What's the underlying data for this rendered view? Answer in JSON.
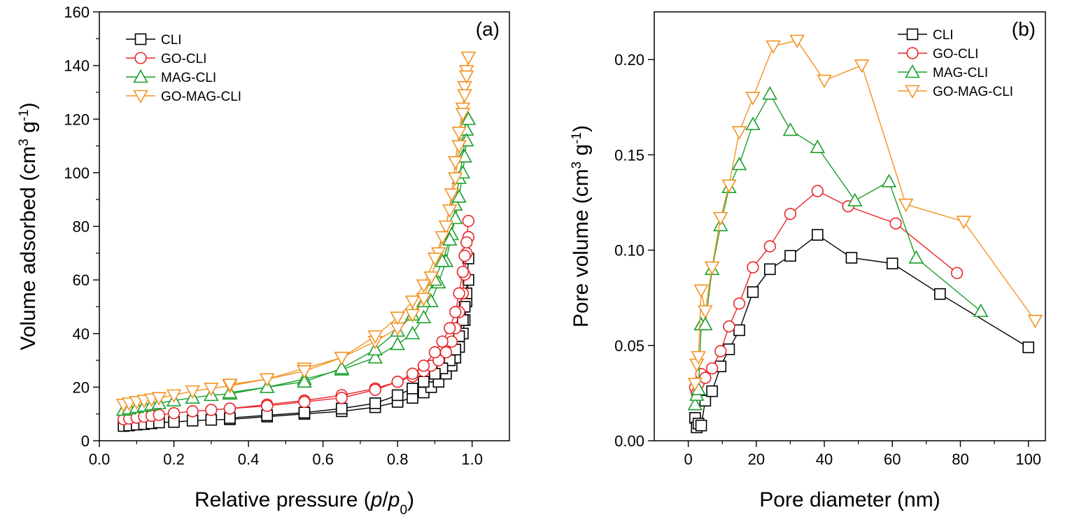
{
  "chart_data": [
    {
      "type": "line",
      "panel_label": "(a)",
      "xlabel": {
        "pre": "Relative pressure (",
        "italic": "p",
        "mid": "/",
        "italic2": "p",
        "sub": "0",
        "post": ")"
      },
      "ylabel": {
        "pre": "Volume adsorbed (cm",
        "sup": "3",
        "mid": " g",
        "sup2": "-1",
        "post": ")"
      },
      "xlim": [
        0.0,
        1.1
      ],
      "ylim": [
        0,
        160
      ],
      "xticks": [
        0.0,
        0.2,
        0.4,
        0.6,
        0.8,
        1.0
      ],
      "xtick_labels": [
        "0.0",
        "0.2",
        "0.4",
        "0.6",
        "0.8",
        "1.0"
      ],
      "yticks": [
        0,
        20,
        40,
        60,
        80,
        100,
        120,
        140,
        160
      ],
      "ytick_labels": [
        "0",
        "20",
        "40",
        "60",
        "80",
        "100",
        "120",
        "140",
        "160"
      ],
      "legend_position": "top-left",
      "series": [
        {
          "name": "CLI",
          "color": "#000000",
          "marker": "square",
          "adsorption": {
            "x": [
              0.065,
              0.08,
              0.1,
              0.12,
              0.14,
              0.16,
              0.2,
              0.25,
              0.3,
              0.35,
              0.45,
              0.55,
              0.65,
              0.74,
              0.8,
              0.84,
              0.87,
              0.89,
              0.91,
              0.93,
              0.945,
              0.955,
              0.965,
              0.975,
              0.98,
              0.985,
              0.99
            ],
            "y": [
              5.5,
              5.7,
              6.0,
              6.2,
              6.5,
              6.8,
              7.0,
              7.5,
              7.8,
              8.0,
              9.0,
              10.0,
              11.0,
              12.5,
              14.5,
              16.0,
              18.0,
              20.0,
              22.0,
              25.0,
              28.0,
              31.0,
              35.0,
              40.0,
              45.0,
              52.0,
              60.0
            ]
          },
          "desorption": {
            "x": [
              0.99,
              0.985,
              0.98,
              0.975,
              0.965,
              0.955,
              0.94,
              0.92,
              0.9,
              0.87,
              0.84,
              0.8,
              0.74,
              0.65,
              0.55,
              0.45,
              0.35
            ],
            "y": [
              68.0,
              55.0,
              50.0,
              45.0,
              39.0,
              34.0,
              30.0,
              27.0,
              25.0,
              22.0,
              19.5,
              17.0,
              14.0,
              12.0,
              10.5,
              9.5,
              8.5
            ]
          }
        },
        {
          "name": "GO-CLI",
          "color": "#e8262a",
          "marker": "circle",
          "adsorption": {
            "x": [
              0.065,
              0.08,
              0.1,
              0.12,
              0.14,
              0.16,
              0.2,
              0.25,
              0.3,
              0.35,
              0.45,
              0.55,
              0.65,
              0.74,
              0.8,
              0.84,
              0.87,
              0.89,
              0.91,
              0.93,
              0.945,
              0.955,
              0.965,
              0.975,
              0.98,
              0.985,
              0.99
            ],
            "y": [
              8.0,
              8.3,
              8.6,
              9.0,
              9.3,
              9.6,
              10.3,
              11.0,
              11.5,
              12.0,
              13.5,
              15.0,
              17.0,
              19.5,
              22.0,
              24.0,
              26.0,
              28.0,
              30.0,
              33.0,
              37.0,
              42.0,
              48.0,
              55.0,
              62.0,
              70.0,
              76.0
            ]
          },
          "desorption": {
            "x": [
              0.99,
              0.985,
              0.98,
              0.975,
              0.965,
              0.955,
              0.94,
              0.92,
              0.9,
              0.87,
              0.84,
              0.8,
              0.74,
              0.65,
              0.55,
              0.45,
              0.35
            ],
            "y": [
              82.0,
              74.0,
              69.0,
              63.0,
              55.0,
              48.0,
              42.0,
              37.0,
              33.0,
              28.0,
              25.0,
              22.0,
              19.0,
              16.0,
              14.5,
              13.0,
              12.0
            ]
          }
        },
        {
          "name": "MAG-CLI",
          "color": "#1a9f2b",
          "marker": "triangle-up",
          "adsorption": {
            "x": [
              0.065,
              0.08,
              0.1,
              0.12,
              0.14,
              0.16,
              0.2,
              0.25,
              0.3,
              0.35,
              0.45,
              0.55,
              0.65,
              0.74,
              0.8,
              0.84,
              0.87,
              0.89,
              0.91,
              0.93,
              0.945,
              0.955,
              0.965,
              0.975,
              0.98,
              0.985,
              0.99
            ],
            "y": [
              11.5,
              12.0,
              12.5,
              13.0,
              13.5,
              14.0,
              15.0,
              16.0,
              17.0,
              17.5,
              20.0,
              23.0,
              26.5,
              31.0,
              36.0,
              40.0,
              46.0,
              52.0,
              59.0,
              67.0,
              77.0,
              88.0,
              98.0,
              106.0,
              112.0,
              116.0,
              120.0
            ]
          },
          "desorption": {
            "x": [
              0.99,
              0.985,
              0.98,
              0.975,
              0.965,
              0.955,
              0.94,
              0.92,
              0.9,
              0.87,
              0.84,
              0.8,
              0.74,
              0.65,
              0.55,
              0.45,
              0.35
            ],
            "y": [
              120.0,
              112.0,
              106.0,
              100.0,
              91.0,
              83.0,
              75.0,
              67.0,
              60.0,
              52.0,
              47.0,
              41.0,
              34.0,
              27.0,
              22.0,
              20.0,
              18.0
            ]
          }
        },
        {
          "name": "GO-MAG-CLI",
          "color": "#f39322",
          "marker": "triangle-down",
          "adsorption": {
            "x": [
              0.065,
              0.08,
              0.1,
              0.12,
              0.14,
              0.16,
              0.2,
              0.25,
              0.3,
              0.35,
              0.45,
              0.55,
              0.65,
              0.74,
              0.8,
              0.84,
              0.87,
              0.89,
              0.91,
              0.93,
              0.945,
              0.955,
              0.965,
              0.975,
              0.98,
              0.985,
              0.99
            ],
            "y": [
              13.5,
              14.0,
              14.5,
              15.0,
              15.5,
              16.0,
              17.0,
              18.5,
              19.5,
              20.5,
              23.0,
              27.0,
              31.0,
              37.0,
              42.0,
              47.0,
              53.0,
              61.0,
              70.0,
              80.0,
              92.0,
              104.0,
              115.0,
              124.0,
              132.0,
              138.0,
              143.0
            ]
          },
          "desorption": {
            "x": [
              0.99,
              0.985,
              0.98,
              0.975,
              0.965,
              0.955,
              0.94,
              0.92,
              0.9,
              0.87,
              0.84,
              0.8,
              0.74,
              0.65,
              0.55,
              0.45,
              0.35
            ],
            "y": [
              143.0,
              136.0,
              129.0,
              122.0,
              110.0,
              98.0,
              86.0,
              76.0,
              68.0,
              58.0,
              52.0,
              46.0,
              39.0,
              31.0,
              26.0,
              23.0,
              21.0
            ]
          }
        }
      ]
    },
    {
      "type": "line",
      "panel_label": "(b)",
      "xlabel": {
        "pre": "Pore diameter (nm)"
      },
      "ylabel": {
        "pre": "Pore volume (cm",
        "sup": "3",
        "mid": " g",
        "sup2": "-1",
        "post": ")"
      },
      "xlim": [
        -10,
        105
      ],
      "ylim": [
        0.0,
        0.225
      ],
      "xticks": [
        0,
        20,
        40,
        60,
        80,
        100
      ],
      "xtick_labels": [
        "0",
        "20",
        "40",
        "60",
        "80",
        "100"
      ],
      "yticks": [
        0.0,
        0.05,
        0.1,
        0.15,
        0.2
      ],
      "ytick_labels": [
        "0.00",
        "0.05",
        "0.10",
        "0.15",
        "0.20"
      ],
      "legend_position": "top-right",
      "series": [
        {
          "name": "CLI",
          "color": "#000000",
          "marker": "square",
          "x": [
            2.0,
            2.5,
            3.0,
            3.8,
            5.0,
            7.0,
            9.5,
            12.0,
            15.0,
            19.0,
            24.0,
            30.0,
            38.0,
            48.0,
            60.0,
            74.0,
            100.0
          ],
          "y": [
            0.012,
            0.007,
            0.009,
            0.008,
            0.021,
            0.026,
            0.039,
            0.048,
            0.058,
            0.078,
            0.09,
            0.097,
            0.108,
            0.096,
            0.093,
            0.077,
            0.049
          ]
        },
        {
          "name": "GO-CLI",
          "color": "#e8262a",
          "marker": "circle",
          "x": [
            2.0,
            2.5,
            3.0,
            3.8,
            5.0,
            7.0,
            9.5,
            12.0,
            15.0,
            19.0,
            24.0,
            30.0,
            38.0,
            47.0,
            61.0,
            79.0
          ],
          "y": [
            0.028,
            0.025,
            0.03,
            0.035,
            0.033,
            0.038,
            0.047,
            0.06,
            0.072,
            0.091,
            0.102,
            0.119,
            0.131,
            0.123,
            0.114,
            0.088
          ]
        },
        {
          "name": "MAG-CLI",
          "color": "#1a9f2b",
          "marker": "triangle-up",
          "x": [
            2.0,
            2.5,
            3.0,
            3.8,
            5.0,
            7.0,
            9.5,
            12.0,
            15.0,
            19.0,
            24.0,
            30.0,
            38.0,
            49.0,
            59.0,
            67.0,
            86.0
          ],
          "y": [
            0.019,
            0.024,
            0.027,
            0.061,
            0.061,
            0.09,
            0.113,
            0.133,
            0.145,
            0.166,
            0.182,
            0.163,
            0.154,
            0.126,
            0.136,
            0.096,
            0.068
          ]
        },
        {
          "name": "GO-MAG-CLI",
          "color": "#f39322",
          "marker": "triangle-down",
          "x": [
            2.0,
            2.5,
            3.0,
            3.8,
            5.0,
            7.0,
            9.5,
            12.0,
            15.0,
            19.0,
            25.0,
            32.0,
            40.0,
            51.0,
            64.0,
            81.0,
            102.0
          ],
          "y": [
            0.03,
            0.04,
            0.044,
            0.079,
            0.068,
            0.091,
            0.117,
            0.134,
            0.162,
            0.18,
            0.207,
            0.21,
            0.189,
            0.197,
            0.124,
            0.115,
            0.063
          ]
        }
      ]
    }
  ]
}
